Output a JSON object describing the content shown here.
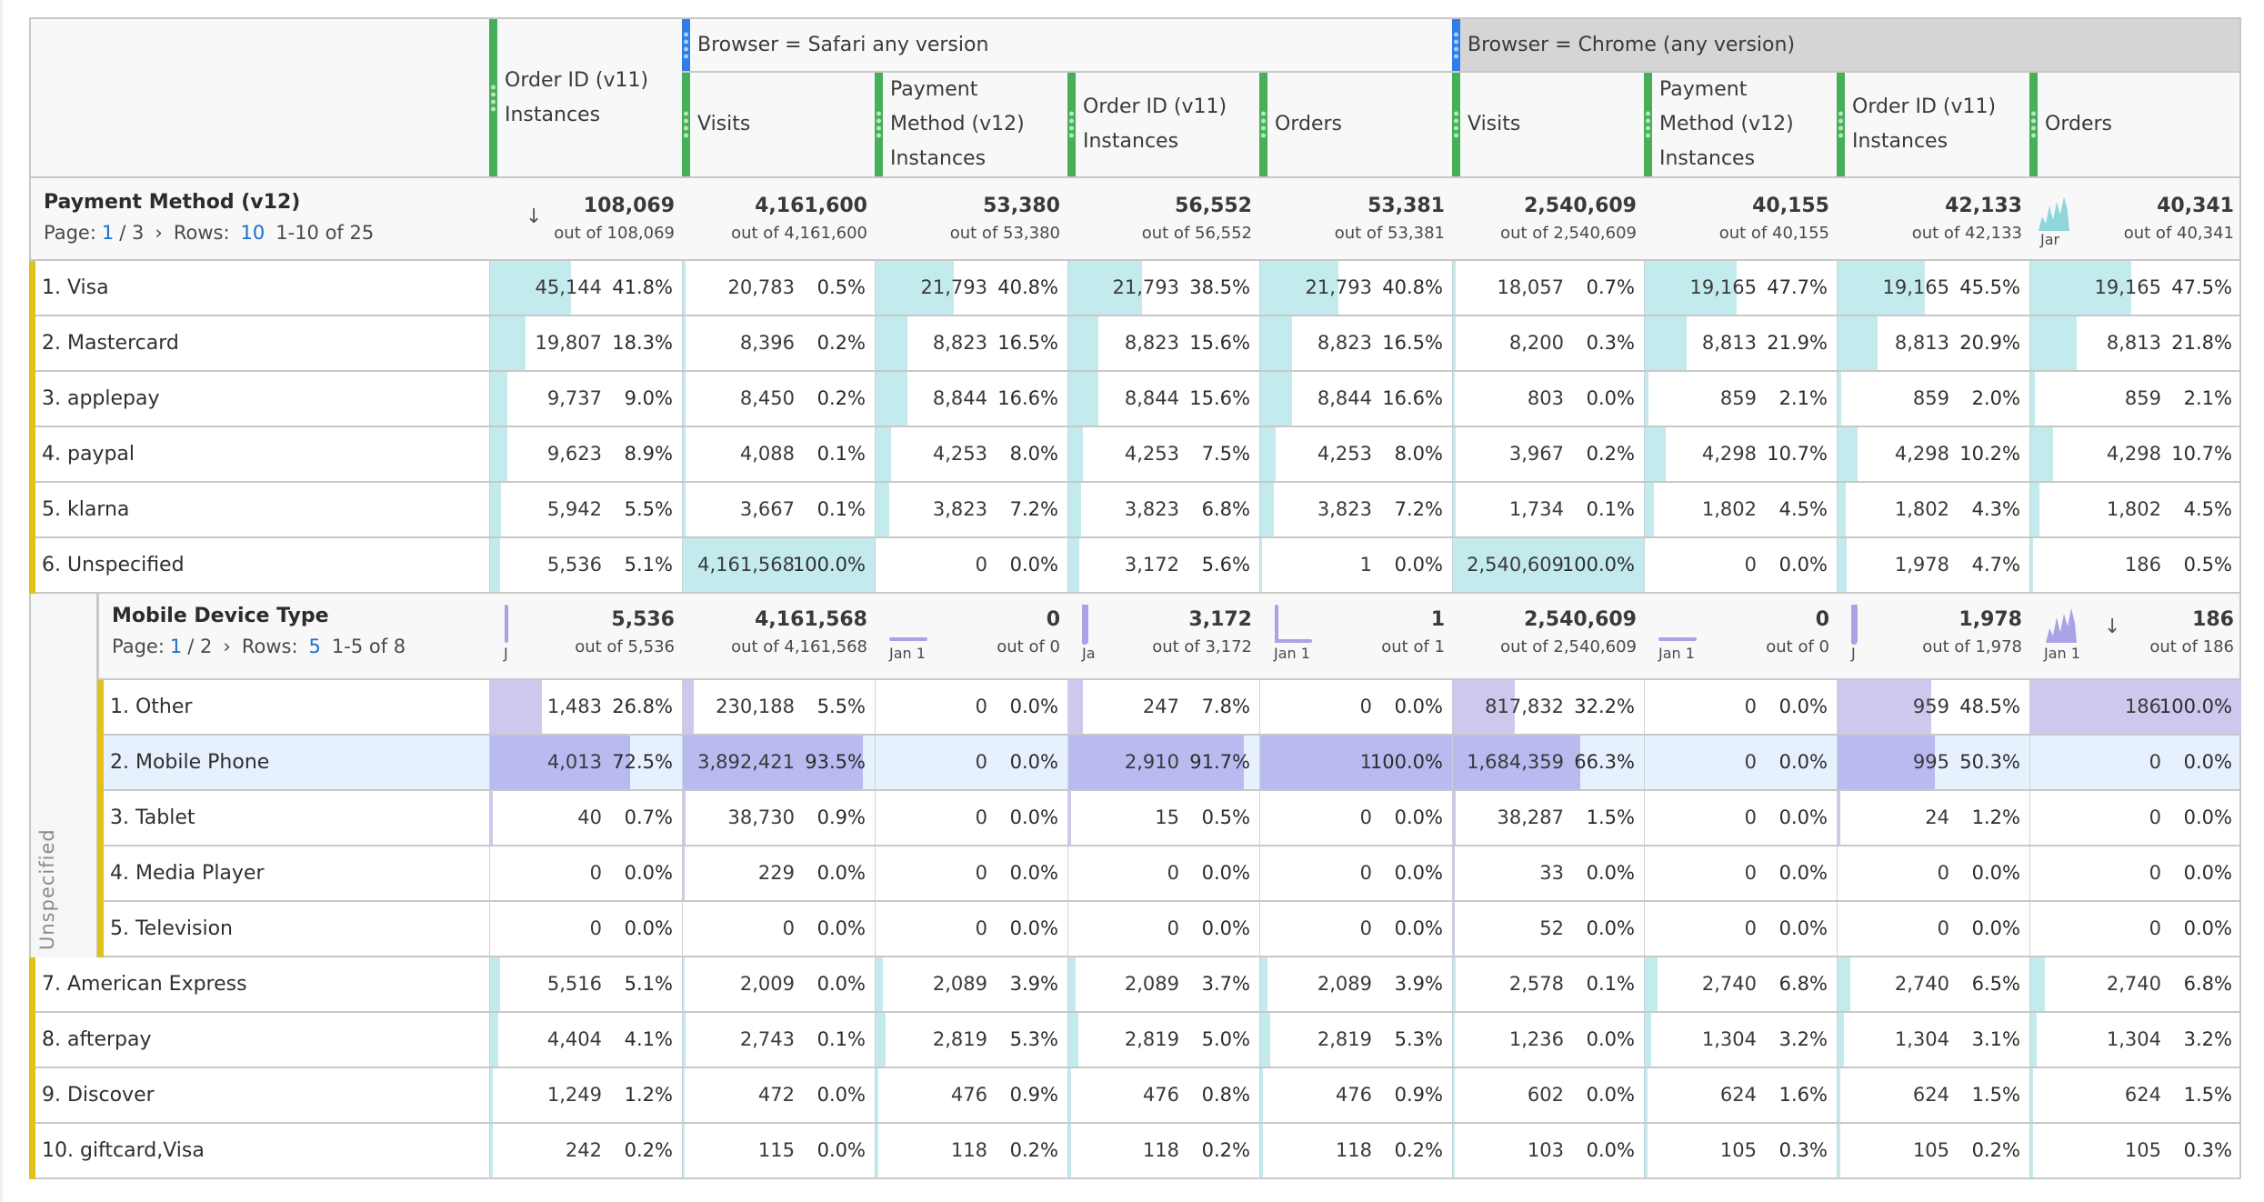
{
  "columns": [
    {
      "group": "",
      "label": "Order ID (v11)\nInstances"
    },
    {
      "group": "safari",
      "label": "Visits"
    },
    {
      "group": "safari",
      "label": "Payment\nMethod (v12)\nInstances"
    },
    {
      "group": "safari",
      "label": "Order ID (v11)\nInstances"
    },
    {
      "group": "safari",
      "label": "Orders"
    },
    {
      "group": "chrome",
      "label": "Visits"
    },
    {
      "group": "chrome",
      "label": "Payment\nMethod (v12)\nInstances"
    },
    {
      "group": "chrome",
      "label": "Order ID (v11)\nInstances"
    },
    {
      "group": "chrome",
      "label": "Orders"
    }
  ],
  "groups": {
    "safari": {
      "label": "Browser = Safari any version"
    },
    "chrome": {
      "label": "Browser = Chrome (any version)"
    }
  },
  "colors": {
    "metric_bar": "#45b058",
    "segment_bar": "#2f7ee8",
    "row_marker": "#e0c21a",
    "teal_fill": "#c3ebee",
    "lavender_fill": "#cdc8ee",
    "lavender_fill_strong": "#b9baf0",
    "link_blue": "#1a6fcb"
  },
  "main_table": {
    "dimension": "Payment Method (v12)",
    "pager": {
      "page_label": "Page:",
      "page": "1",
      "page_total": "/ 3",
      "next": "›",
      "rows_label": "Rows:",
      "rows": "10",
      "range": "1-10 of 25"
    },
    "totals": [
      {
        "value": "108,069",
        "out_of": "out of 108,069",
        "sorted": true
      },
      {
        "value": "4,161,600",
        "out_of": "out of 4,161,600"
      },
      {
        "value": "53,380",
        "out_of": "out of 53,380"
      },
      {
        "value": "56,552",
        "out_of": "out of 56,552"
      },
      {
        "value": "53,381",
        "out_of": "out of 53,381"
      },
      {
        "value": "2,540,609",
        "out_of": "out of 2,540,609"
      },
      {
        "value": "40,155",
        "out_of": "out of 40,155"
      },
      {
        "value": "42,133",
        "out_of": "out of 42,133"
      },
      {
        "value": "40,341",
        "out_of": "out of 40,341",
        "sparkline": true,
        "spark_label": "Jar"
      }
    ],
    "rows_top": [
      {
        "label": "1.  Visa",
        "cells": [
          [
            "45,144",
            "41.8%"
          ],
          [
            "20,783",
            "0.5%"
          ],
          [
            "21,793",
            "40.8%"
          ],
          [
            "21,793",
            "38.5%"
          ],
          [
            "21,793",
            "40.8%"
          ],
          [
            "18,057",
            "0.7%"
          ],
          [
            "19,165",
            "47.7%"
          ],
          [
            "19,165",
            "45.5%"
          ],
          [
            "19,165",
            "47.5%"
          ]
        ]
      },
      {
        "label": "2.  Mastercard",
        "cells": [
          [
            "19,807",
            "18.3%"
          ],
          [
            "8,396",
            "0.2%"
          ],
          [
            "8,823",
            "16.5%"
          ],
          [
            "8,823",
            "15.6%"
          ],
          [
            "8,823",
            "16.5%"
          ],
          [
            "8,200",
            "0.3%"
          ],
          [
            "8,813",
            "21.9%"
          ],
          [
            "8,813",
            "20.9%"
          ],
          [
            "8,813",
            "21.8%"
          ]
        ]
      },
      {
        "label": "3.  applepay",
        "cells": [
          [
            "9,737",
            "9.0%"
          ],
          [
            "8,450",
            "0.2%"
          ],
          [
            "8,844",
            "16.6%"
          ],
          [
            "8,844",
            "15.6%"
          ],
          [
            "8,844",
            "16.6%"
          ],
          [
            "803",
            "0.0%"
          ],
          [
            "859",
            "2.1%"
          ],
          [
            "859",
            "2.0%"
          ],
          [
            "859",
            "2.1%"
          ]
        ]
      },
      {
        "label": "4.  paypal",
        "cells": [
          [
            "9,623",
            "8.9%"
          ],
          [
            "4,088",
            "0.1%"
          ],
          [
            "4,253",
            "8.0%"
          ],
          [
            "4,253",
            "7.5%"
          ],
          [
            "4,253",
            "8.0%"
          ],
          [
            "3,967",
            "0.2%"
          ],
          [
            "4,298",
            "10.7%"
          ],
          [
            "4,298",
            "10.2%"
          ],
          [
            "4,298",
            "10.7%"
          ]
        ]
      },
      {
        "label": "5.  klarna",
        "cells": [
          [
            "5,942",
            "5.5%"
          ],
          [
            "3,667",
            "0.1%"
          ],
          [
            "3,823",
            "7.2%"
          ],
          [
            "3,823",
            "6.8%"
          ],
          [
            "3,823",
            "7.2%"
          ],
          [
            "1,734",
            "0.1%"
          ],
          [
            "1,802",
            "4.5%"
          ],
          [
            "1,802",
            "4.3%"
          ],
          [
            "1,802",
            "4.5%"
          ]
        ]
      },
      {
        "label": "6.  Unspecified",
        "cells": [
          [
            "5,536",
            "5.1%"
          ],
          [
            "4,161,568",
            "100.0%"
          ],
          [
            "0",
            "0.0%"
          ],
          [
            "3,172",
            "5.6%"
          ],
          [
            "1",
            "0.0%"
          ],
          [
            "2,540,609",
            "100.0%"
          ],
          [
            "0",
            "0.0%"
          ],
          [
            "1,978",
            "4.7%"
          ],
          [
            "186",
            "0.5%"
          ]
        ]
      }
    ],
    "rows_bottom": [
      {
        "label": "7.  American Express",
        "cells": [
          [
            "5,516",
            "5.1%"
          ],
          [
            "2,009",
            "0.0%"
          ],
          [
            "2,089",
            "3.9%"
          ],
          [
            "2,089",
            "3.7%"
          ],
          [
            "2,089",
            "3.9%"
          ],
          [
            "2,578",
            "0.1%"
          ],
          [
            "2,740",
            "6.8%"
          ],
          [
            "2,740",
            "6.5%"
          ],
          [
            "2,740",
            "6.8%"
          ]
        ]
      },
      {
        "label": "8.  afterpay",
        "cells": [
          [
            "4,404",
            "4.1%"
          ],
          [
            "2,743",
            "0.1%"
          ],
          [
            "2,819",
            "5.3%"
          ],
          [
            "2,819",
            "5.0%"
          ],
          [
            "2,819",
            "5.3%"
          ],
          [
            "1,236",
            "0.0%"
          ],
          [
            "1,304",
            "3.2%"
          ],
          [
            "1,304",
            "3.1%"
          ],
          [
            "1,304",
            "3.2%"
          ]
        ]
      },
      {
        "label": "9.  Discover",
        "cells": [
          [
            "1,249",
            "1.2%"
          ],
          [
            "472",
            "0.0%"
          ],
          [
            "476",
            "0.9%"
          ],
          [
            "476",
            "0.8%"
          ],
          [
            "476",
            "0.9%"
          ],
          [
            "602",
            "0.0%"
          ],
          [
            "624",
            "1.6%"
          ],
          [
            "624",
            "1.5%"
          ],
          [
            "624",
            "1.5%"
          ]
        ]
      },
      {
        "label": "10.  giftcard,Visa",
        "cells": [
          [
            "242",
            "0.2%"
          ],
          [
            "115",
            "0.0%"
          ],
          [
            "118",
            "0.2%"
          ],
          [
            "118",
            "0.2%"
          ],
          [
            "118",
            "0.2%"
          ],
          [
            "103",
            "0.0%"
          ],
          [
            "105",
            "0.3%"
          ],
          [
            "105",
            "0.2%"
          ],
          [
            "105",
            "0.3%"
          ]
        ]
      }
    ]
  },
  "nested_table": {
    "parent_label": "Unspecified",
    "dimension": "Mobile Device Type",
    "pager": {
      "page_label": "Page:",
      "page": "1",
      "page_total": "/ 2",
      "next": "›",
      "rows_label": "Rows:",
      "rows": "5",
      "range": "1-5 of 8"
    },
    "totals": [
      {
        "value": "5,536",
        "out_of": "out of 5,536",
        "spark_label": "J"
      },
      {
        "value": "4,161,568",
        "out_of": "out of 4,161,568"
      },
      {
        "value": "0",
        "out_of": "out of 0",
        "spark_label": "Jan 1"
      },
      {
        "value": "3,172",
        "out_of": "out of 3,172",
        "spark_label": "Ja"
      },
      {
        "value": "1",
        "out_of": "out of 1",
        "spark_label": "Jan 1"
      },
      {
        "value": "2,540,609",
        "out_of": "out of 2,540,609"
      },
      {
        "value": "0",
        "out_of": "out of 0",
        "spark_label": "Jan 1"
      },
      {
        "value": "1,978",
        "out_of": "out of 1,978",
        "spark_label": "J"
      },
      {
        "value": "186",
        "out_of": "out of 186",
        "spark_label": "Jan 1",
        "sorted": true
      }
    ],
    "rows": [
      {
        "label": "1.  Other",
        "cells": [
          [
            "1,483",
            "26.8%"
          ],
          [
            "230,188",
            "5.5%"
          ],
          [
            "0",
            "0.0%"
          ],
          [
            "247",
            "7.8%"
          ],
          [
            "0",
            "0.0%"
          ],
          [
            "817,832",
            "32.2%"
          ],
          [
            "0",
            "0.0%"
          ],
          [
            "959",
            "48.5%"
          ],
          [
            "186",
            "100.0%"
          ]
        ]
      },
      {
        "label": "2.  Mobile Phone",
        "highlighted": true,
        "cells": [
          [
            "4,013",
            "72.5%"
          ],
          [
            "3,892,421",
            "93.5%"
          ],
          [
            "0",
            "0.0%"
          ],
          [
            "2,910",
            "91.7%"
          ],
          [
            "1",
            "100.0%"
          ],
          [
            "1,684,359",
            "66.3%"
          ],
          [
            "0",
            "0.0%"
          ],
          [
            "995",
            "50.3%"
          ],
          [
            "0",
            "0.0%"
          ]
        ]
      },
      {
        "label": "3.  Tablet",
        "cells": [
          [
            "40",
            "0.7%"
          ],
          [
            "38,730",
            "0.9%"
          ],
          [
            "0",
            "0.0%"
          ],
          [
            "15",
            "0.5%"
          ],
          [
            "0",
            "0.0%"
          ],
          [
            "38,287",
            "1.5%"
          ],
          [
            "0",
            "0.0%"
          ],
          [
            "24",
            "1.2%"
          ],
          [
            "0",
            "0.0%"
          ]
        ]
      },
      {
        "label": "4.  Media Player",
        "cells": [
          [
            "0",
            "0.0%"
          ],
          [
            "229",
            "0.0%"
          ],
          [
            "0",
            "0.0%"
          ],
          [
            "0",
            "0.0%"
          ],
          [
            "0",
            "0.0%"
          ],
          [
            "33",
            "0.0%"
          ],
          [
            "0",
            "0.0%"
          ],
          [
            "0",
            "0.0%"
          ],
          [
            "0",
            "0.0%"
          ]
        ]
      },
      {
        "label": "5.  Television",
        "cells": [
          [
            "0",
            "0.0%"
          ],
          [
            "0",
            "0.0%"
          ],
          [
            "0",
            "0.0%"
          ],
          [
            "0",
            "0.0%"
          ],
          [
            "0",
            "0.0%"
          ],
          [
            "52",
            "0.0%"
          ],
          [
            "0",
            "0.0%"
          ],
          [
            "0",
            "0.0%"
          ],
          [
            "0",
            "0.0%"
          ]
        ]
      }
    ]
  }
}
